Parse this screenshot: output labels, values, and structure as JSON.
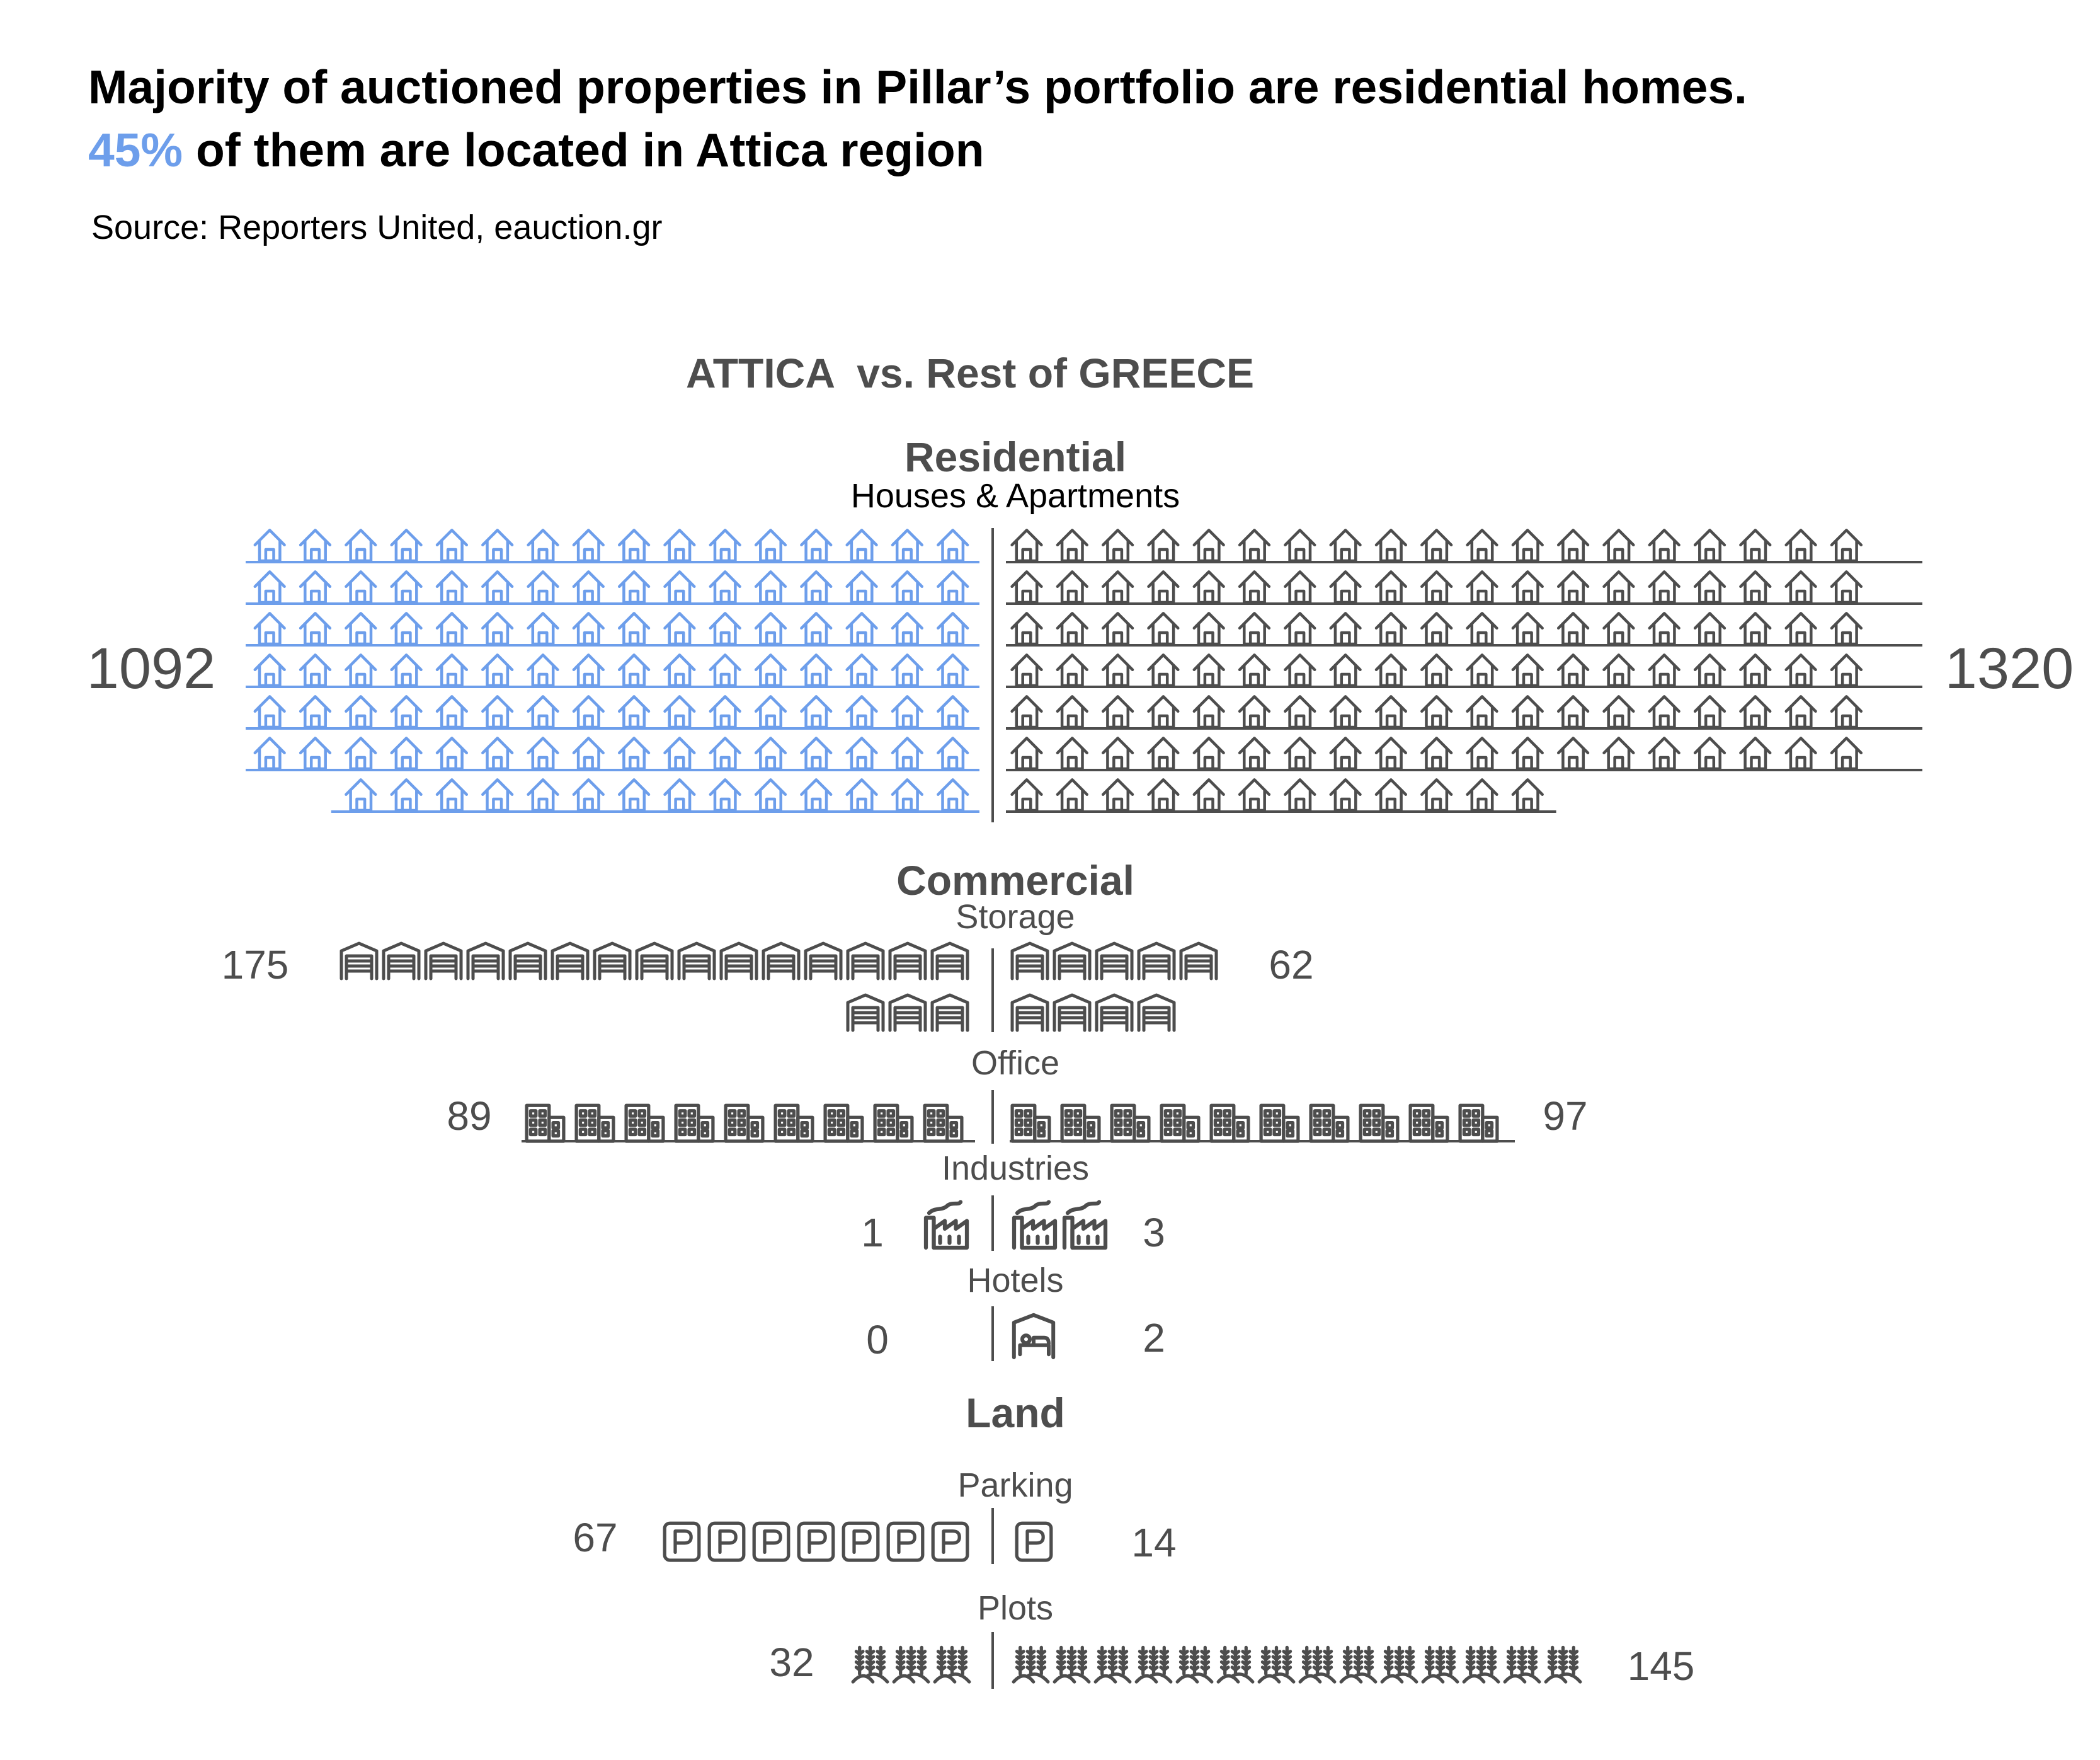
{
  "title": {
    "line1": "Majority of auctioned properties in Pillar’s portfolio are residential homes.",
    "line2_highlight": "45%",
    "line2_rest": " of them are located in Attica region"
  },
  "source": "Source: Reporters United, eauction.gr",
  "colors": {
    "attica": "#6d9eeb",
    "rest": "#4d4d4d",
    "text": "#4d4d4d",
    "highlight": "#6d9eeb"
  },
  "chart_data": {
    "type": "pictogram",
    "heading": "ATTICA  vs. Rest of GREECE",
    "groups": [
      {
        "name": "Residential",
        "subgroups": [
          {
            "name": "Houses & Apartments",
            "icon": "house-icon",
            "attica": 1092,
            "rest": 1320
          }
        ]
      },
      {
        "name": "Commercial",
        "subgroups": [
          {
            "name": "Storage",
            "icon": "warehouse-icon",
            "attica": 175,
            "rest": 62
          },
          {
            "name": "Office",
            "icon": "office-building-icon",
            "attica": 89,
            "rest": 97
          },
          {
            "name": "Industries",
            "icon": "factory-icon",
            "attica": 1,
            "rest": 3
          },
          {
            "name": "Hotels",
            "icon": "bed-icon",
            "attica": 0,
            "rest": 2
          }
        ]
      },
      {
        "name": "Land",
        "subgroups": [
          {
            "name": "Parking",
            "icon": "parking-icon",
            "attica": 67,
            "rest": 14
          },
          {
            "name": "Plots",
            "icon": "wheat-field-icon",
            "attica": 32,
            "rest": 145
          }
        ]
      }
    ]
  }
}
